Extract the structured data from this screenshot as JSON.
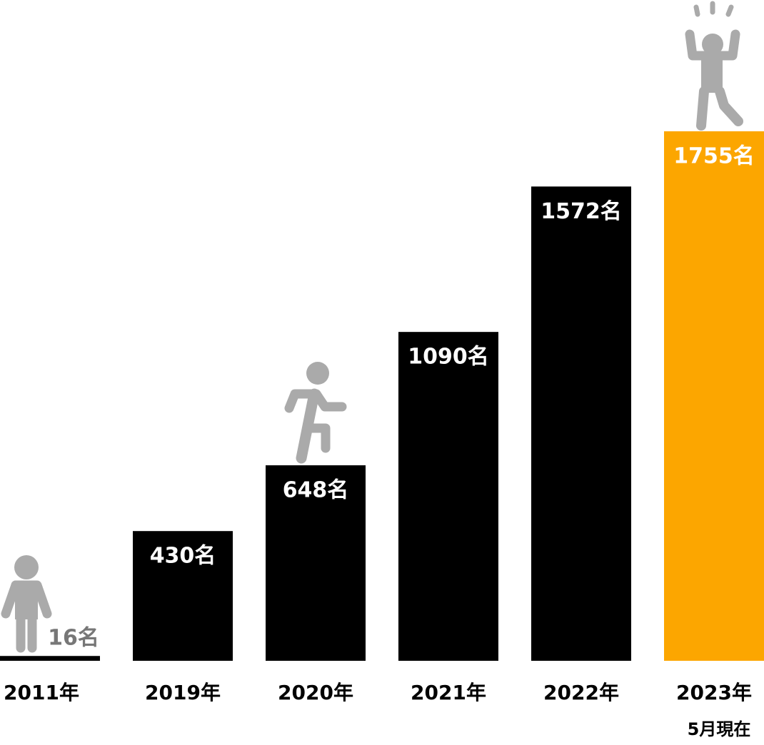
{
  "chart_data": {
    "type": "bar",
    "categories": [
      "2011年",
      "2019年",
      "2020年",
      "2021年",
      "2022年",
      "2023年"
    ],
    "sublabels": [
      null,
      null,
      null,
      null,
      null,
      "5月現在"
    ],
    "values": [
      16,
      430,
      648,
      1090,
      1572,
      1755
    ],
    "value_labels": [
      "16名",
      "430名",
      "648名",
      "1090名",
      "1572名",
      "1755名"
    ],
    "colors": [
      "#000000",
      "#000000",
      "#000000",
      "#000000",
      "#000000",
      "#fca600"
    ]
  }
}
